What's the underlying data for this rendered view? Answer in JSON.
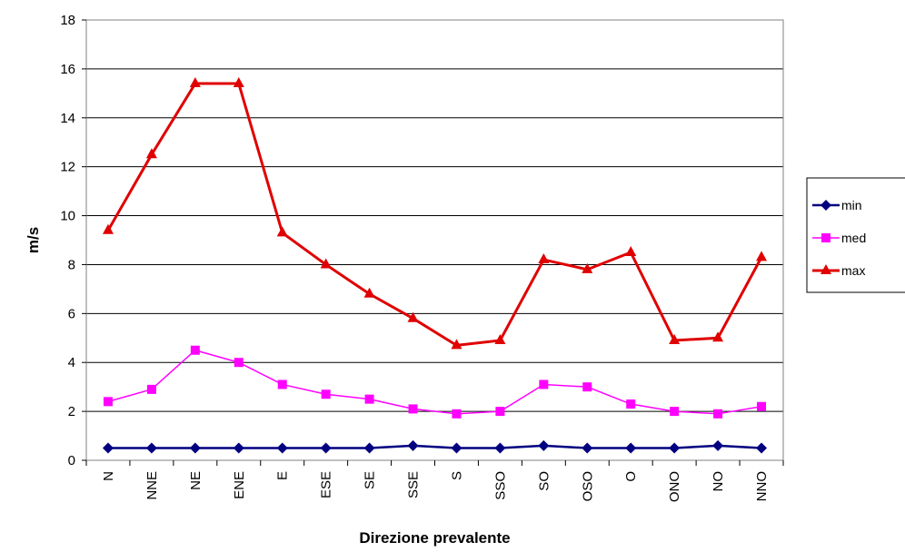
{
  "chart_data": {
    "type": "line",
    "xlabel": "Direzione prevalente",
    "ylabel": "m/s",
    "ylim": [
      0,
      18
    ],
    "yticks": [
      0,
      2,
      4,
      6,
      8,
      10,
      12,
      14,
      16,
      18
    ],
    "grid": true,
    "legend_position": "right",
    "categories": [
      "N",
      "NNE",
      "NE",
      "ENE",
      "E",
      "ESE",
      "SE",
      "SSE",
      "S",
      "SSO",
      "SO",
      "OSO",
      "O",
      "ONO",
      "NO",
      "NNO"
    ],
    "series": [
      {
        "name": "min",
        "color": "#000080",
        "marker": "diamond",
        "values": [
          0.5,
          0.5,
          0.5,
          0.5,
          0.5,
          0.5,
          0.5,
          0.6,
          0.5,
          0.5,
          0.6,
          0.5,
          0.5,
          0.5,
          0.6,
          0.5
        ]
      },
      {
        "name": "med",
        "color": "#ff00ff",
        "marker": "square",
        "values": [
          2.4,
          2.9,
          4.5,
          4.0,
          3.1,
          2.7,
          2.5,
          2.1,
          1.9,
          2.0,
          3.1,
          3.0,
          2.3,
          2.0,
          1.9,
          2.2
        ]
      },
      {
        "name": "max",
        "color": "#e00000",
        "marker": "triangle",
        "values": [
          9.4,
          12.5,
          15.4,
          15.4,
          9.3,
          8.0,
          6.8,
          5.8,
          4.7,
          4.9,
          8.2,
          7.8,
          8.5,
          4.9,
          5.0,
          8.3
        ]
      }
    ]
  }
}
